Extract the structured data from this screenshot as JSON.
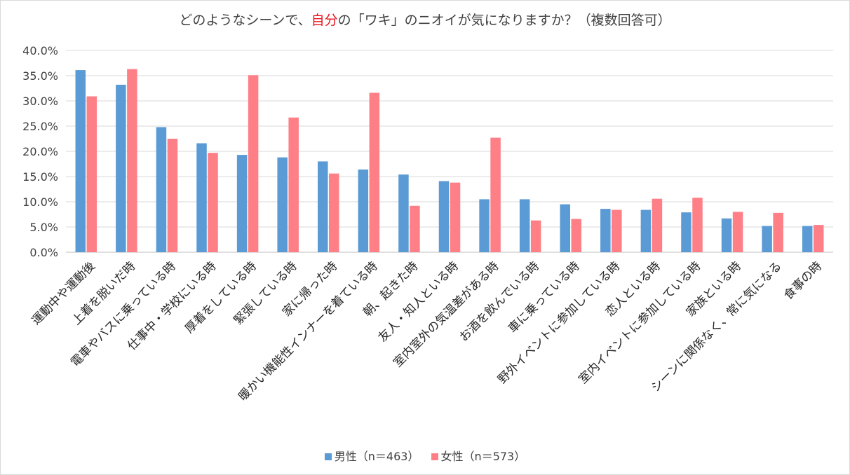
{
  "title": {
    "part1": "どのようなシーンで、",
    "highlight": "自分",
    "part2": "の「ワキ」のニオイが気になりますか？（複数回答可）"
  },
  "colors": {
    "male": "#5b9bd5",
    "female": "#ff7f87",
    "highlight": "#e8141c"
  },
  "chart_data": {
    "type": "bar",
    "title": "どのようなシーンで、自分の「ワキ」のニオイが気になりますか？（複数回答可）",
    "xlabel": "",
    "ylabel": "",
    "ylim": [
      0,
      40
    ],
    "yticks": [
      0,
      5,
      10,
      15,
      20,
      25,
      30,
      35,
      40
    ],
    "ytick_labels": [
      "0.0%",
      "5.0%",
      "10.0%",
      "15.0%",
      "20.0%",
      "25.0%",
      "30.0%",
      "35.0%",
      "40.0%"
    ],
    "grid": true,
    "legend": "bottom",
    "categories": [
      "運動中や運動後",
      "上着を脱いだ時",
      "電車やバスに乗っている時",
      "仕事中・学校にいる時",
      "厚着をしている時",
      "緊張している時",
      "家に帰った時",
      "暖かい機能性インナーを着ている時",
      "朝、起きた時",
      "友人・知人といる時",
      "室内室外の気温差がある時",
      "お酒を飲んでいる時",
      "車に乗っている時",
      "野外イベントに参加している時",
      "恋人といる時",
      "室内イベントに参加している時",
      "家族といる時",
      "シーンに関係なく、常に気になる",
      "食事の時"
    ],
    "series": [
      {
        "name": "男性（n＝463）",
        "values": [
          36.1,
          33.2,
          24.8,
          21.6,
          19.3,
          18.8,
          18.0,
          16.4,
          15.4,
          14.1,
          10.5,
          10.5,
          9.5,
          8.6,
          8.4,
          7.9,
          6.7,
          5.2,
          5.2
        ]
      },
      {
        "name": "女性（n＝573）",
        "values": [
          30.9,
          36.3,
          22.5,
          19.7,
          35.1,
          26.7,
          15.6,
          31.6,
          9.2,
          13.8,
          22.7,
          6.3,
          6.6,
          8.4,
          10.6,
          10.8,
          8.0,
          7.8,
          5.4
        ]
      }
    ]
  }
}
